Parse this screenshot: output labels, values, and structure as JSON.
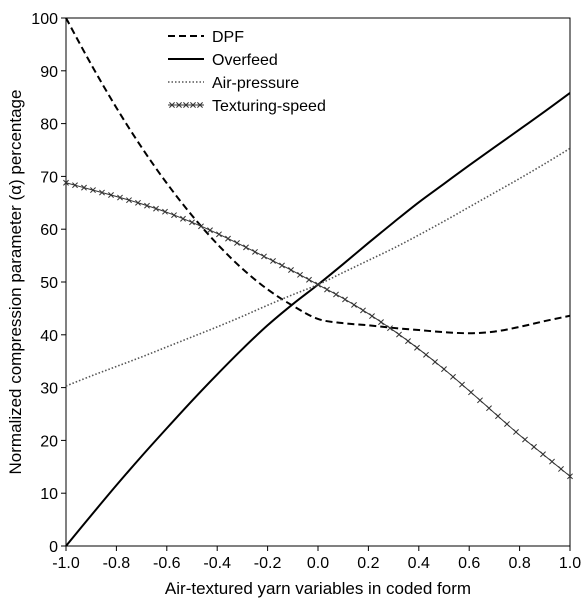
{
  "chart_data": {
    "type": "line",
    "title": "",
    "xlabel": "Air-textured yarn variables in coded form",
    "ylabel": "Normalized compression parameter (α) percentage",
    "xlim": [
      -1.0,
      1.0
    ],
    "ylim": [
      0,
      100
    ],
    "xticks": [
      -1.0,
      -0.8,
      -0.6,
      -0.4,
      -0.2,
      0.0,
      0.2,
      0.4,
      0.6,
      0.8,
      1.0
    ],
    "xtick_labels": [
      "-1.0",
      "-0.8",
      "-0.6",
      "-0.4",
      "-0.2",
      "0.0",
      "0.2",
      "0.4",
      "0.6",
      "0.8",
      "1.0"
    ],
    "yticks": [
      0,
      10,
      20,
      30,
      40,
      50,
      60,
      70,
      80,
      90,
      100
    ],
    "ytick_labels": [
      "0",
      "10",
      "20",
      "30",
      "40",
      "50",
      "60",
      "70",
      "80",
      "90",
      "100"
    ],
    "grid": false,
    "legend_position": "top-center",
    "x": [
      -1.0,
      -0.9,
      -0.8,
      -0.7,
      -0.6,
      -0.5,
      -0.4,
      -0.3,
      -0.2,
      -0.1,
      0.0,
      0.1,
      0.2,
      0.3,
      0.4,
      0.5,
      0.6,
      0.7,
      0.8,
      0.9,
      1.0
    ],
    "series": [
      {
        "name": "DPF",
        "style": "dashed",
        "color": "#000000",
        "values": [
          100.0,
          91.2,
          83.0,
          75.5,
          68.7,
          62.6,
          57.2,
          52.5,
          48.6,
          45.5,
          43.0,
          42.2,
          41.8,
          41.3,
          40.9,
          40.5,
          40.3,
          40.6,
          41.5,
          42.6,
          43.6
        ]
      },
      {
        "name": "Overfeed",
        "style": "solid",
        "color": "#000000",
        "values": [
          0.0,
          5.8,
          11.5,
          17.0,
          22.3,
          27.5,
          32.5,
          37.3,
          41.8,
          45.8,
          49.5,
          53.4,
          57.4,
          61.3,
          65.1,
          68.6,
          72.1,
          75.5,
          78.9,
          82.3,
          85.8
        ]
      },
      {
        "name": "Air-pressure",
        "style": "dotted",
        "color": "#555555",
        "values": [
          30.3,
          32.2,
          34.0,
          35.8,
          37.7,
          39.6,
          41.5,
          43.5,
          45.6,
          47.6,
          49.5,
          51.8,
          54.1,
          56.4,
          58.9,
          61.5,
          64.2,
          66.9,
          69.6,
          72.4,
          75.3
        ]
      },
      {
        "name": "Texturing-speed",
        "style": "solid-x-markers",
        "color": "#333333",
        "values": [
          68.8,
          67.5,
          66.2,
          64.8,
          63.2,
          61.3,
          59.2,
          56.9,
          54.5,
          52.1,
          49.5,
          46.9,
          44.0,
          40.8,
          37.3,
          33.5,
          29.4,
          25.2,
          21.0,
          17.1,
          13.2
        ]
      }
    ]
  }
}
